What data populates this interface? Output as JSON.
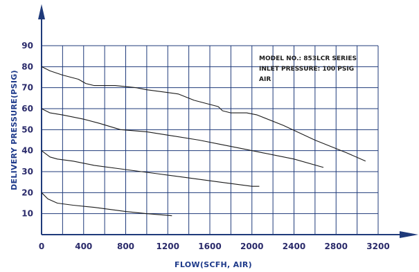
{
  "chart_data": {
    "type": "line",
    "xlabel": "FLOW(SCFH, AIR)",
    "ylabel": "DELIVERY PRESSURE(PSIG)",
    "xlim": [
      0,
      3200
    ],
    "ylim": [
      0,
      90
    ],
    "x_ticks": [
      "0",
      "400",
      "800",
      "1200",
      "1600",
      "2000",
      "2400",
      "2800",
      "3200"
    ],
    "y_ticks": [
      "10",
      "20",
      "30",
      "40",
      "50",
      "60",
      "70",
      "80",
      "90"
    ],
    "grid": true,
    "annotation": [
      "MODEL NO.: 853LCR SERIES",
      "INLET PRESSURE: 100 PSIG",
      "AIR"
    ],
    "colors": {
      "grid": "#1f3a7a",
      "curves": "#1a1a1a",
      "axis_titles": "#1e3a8a"
    },
    "series": [
      {
        "points": [
          [
            0,
            80
          ],
          [
            80,
            78
          ],
          [
            200,
            76
          ],
          [
            350,
            74
          ],
          [
            420,
            72
          ],
          [
            500,
            71
          ],
          [
            700,
            71
          ],
          [
            900,
            70
          ],
          [
            1000,
            69
          ],
          [
            1150,
            68
          ],
          [
            1300,
            67
          ],
          [
            1450,
            64
          ],
          [
            1600,
            62
          ],
          [
            1680,
            61
          ],
          [
            1720,
            59
          ],
          [
            1800,
            58
          ],
          [
            1950,
            58
          ],
          [
            2050,
            57
          ],
          [
            2300,
            52
          ],
          [
            2600,
            45
          ],
          [
            2900,
            39
          ],
          [
            3080,
            35
          ]
        ]
      },
      {
        "points": [
          [
            0,
            60
          ],
          [
            80,
            58
          ],
          [
            200,
            57
          ],
          [
            400,
            55
          ],
          [
            550,
            53
          ],
          [
            750,
            50
          ],
          [
            1000,
            49
          ],
          [
            1250,
            47
          ],
          [
            1500,
            45
          ],
          [
            1700,
            43
          ],
          [
            1900,
            41
          ],
          [
            2100,
            39
          ],
          [
            2400,
            36
          ],
          [
            2680,
            32
          ]
        ]
      },
      {
        "points": [
          [
            0,
            40
          ],
          [
            80,
            37
          ],
          [
            150,
            36
          ],
          [
            300,
            35
          ],
          [
            500,
            33
          ],
          [
            800,
            31
          ],
          [
            1100,
            29
          ],
          [
            1400,
            27
          ],
          [
            1700,
            25
          ],
          [
            2000,
            23
          ],
          [
            2070,
            23
          ]
        ]
      },
      {
        "points": [
          [
            0,
            20
          ],
          [
            60,
            17
          ],
          [
            150,
            15
          ],
          [
            300,
            14
          ],
          [
            500,
            13
          ],
          [
            800,
            11
          ],
          [
            1000,
            10
          ],
          [
            1240,
            9
          ]
        ]
      }
    ]
  }
}
